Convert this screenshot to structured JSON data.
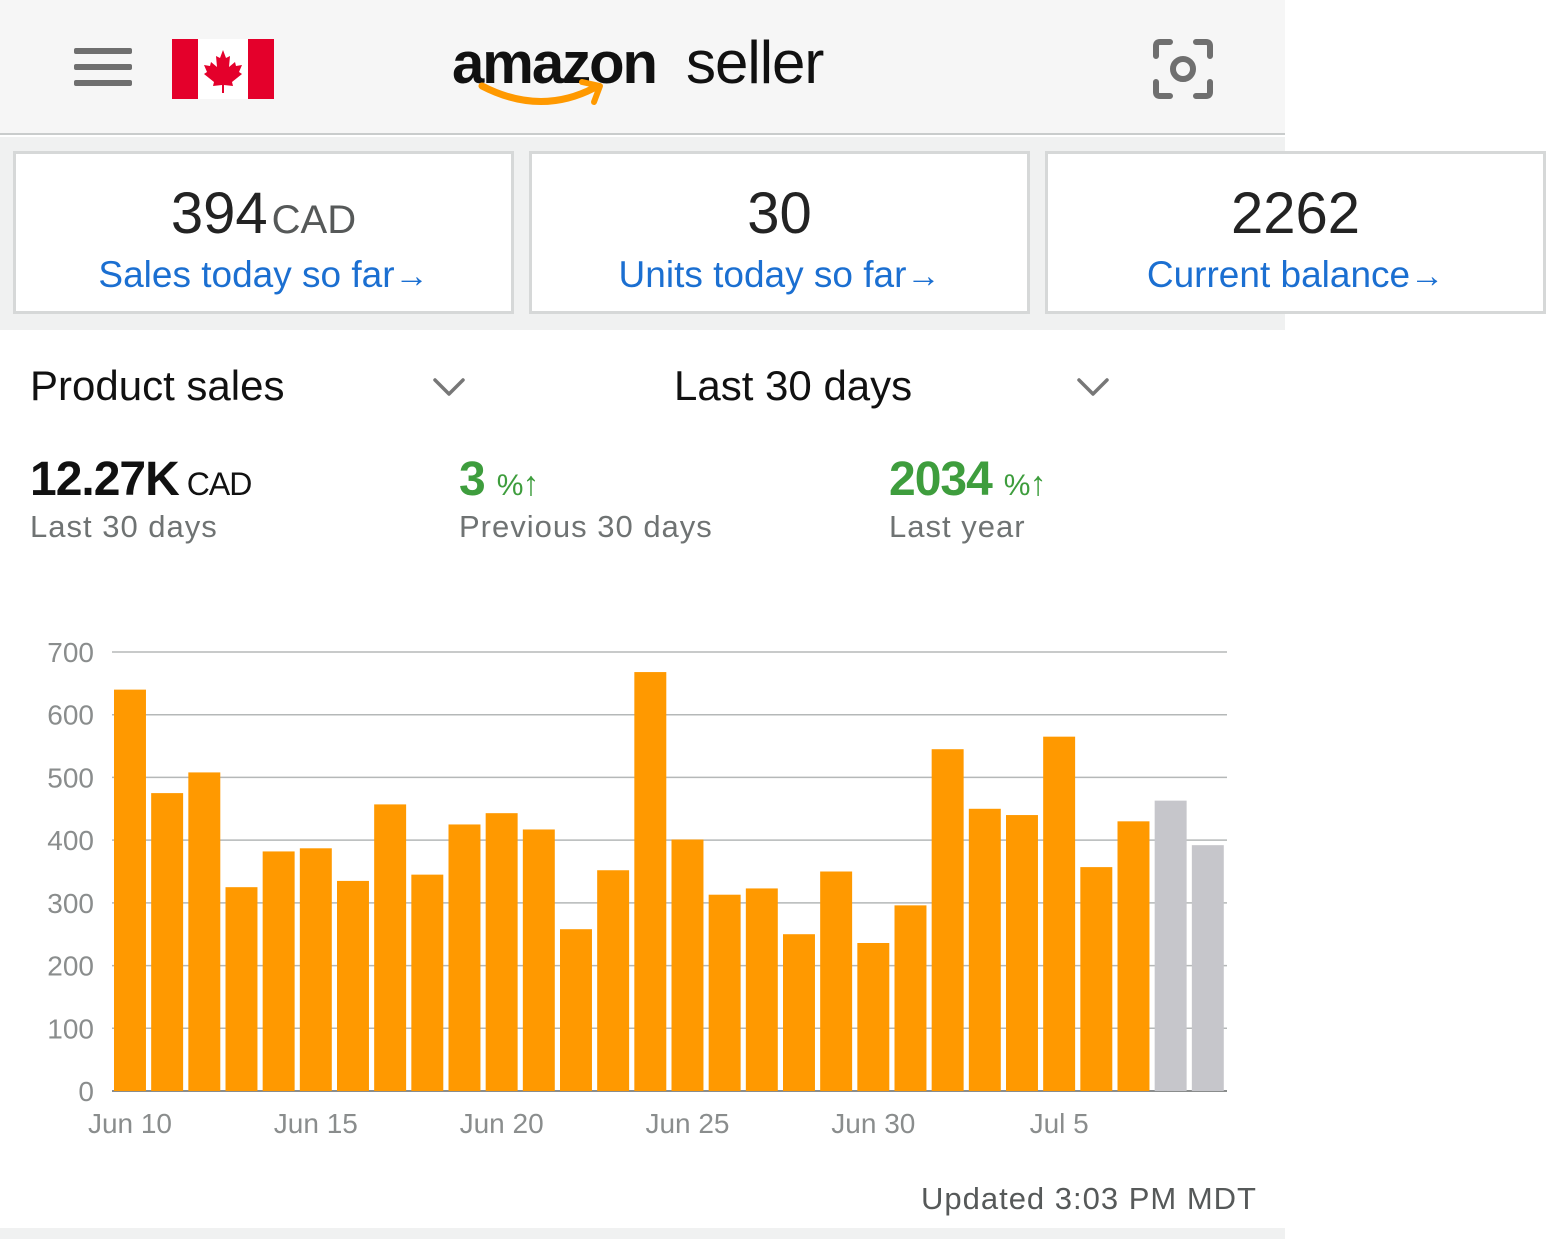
{
  "header": {
    "brand": "amazon",
    "product": "seller",
    "menu_icon": "hamburger-menu-icon",
    "flag_icon": "canada-flag-icon",
    "scan_icon": "camera-scan-icon"
  },
  "cards": [
    {
      "value": "394",
      "unit": "CAD",
      "label": "Sales today so far",
      "arrow": "→"
    },
    {
      "value": "30",
      "unit": "",
      "label": "Units today so far",
      "arrow": "→"
    },
    {
      "value": "2262",
      "unit": "",
      "label": "Current balance",
      "arrow": "→"
    }
  ],
  "selectors": {
    "metric": "Product sales",
    "period": "Last 30 days"
  },
  "metrics": {
    "total": {
      "value": "12.27K",
      "unit": "CAD",
      "label": "Last 30 days"
    },
    "previous": {
      "value": "3",
      "pct": "%",
      "arrow": "↑",
      "label": "Previous 30 days"
    },
    "last_year": {
      "value": "2034",
      "pct": "%",
      "arrow": "↑",
      "label": "Last year"
    }
  },
  "colors": {
    "bar": "#ff9900",
    "bar_projected": "#c6c6cb",
    "link": "#1b6fd1",
    "positive": "#3e9d3d"
  },
  "chart_data": {
    "type": "bar",
    "ylim": [
      0,
      700
    ],
    "yticks": [
      0,
      100,
      200,
      300,
      400,
      500,
      600,
      700
    ],
    "x_tick_labels": [
      "Jun 10",
      "Jun 15",
      "Jun 20",
      "Jun 25",
      "Jun 30",
      "Jul 5"
    ],
    "categories": [
      "Jun 10",
      "Jun 11",
      "Jun 12",
      "Jun 13",
      "Jun 14",
      "Jun 15",
      "Jun 16",
      "Jun 17",
      "Jun 18",
      "Jun 19",
      "Jun 20",
      "Jun 21",
      "Jun 22",
      "Jun 23",
      "Jun 24",
      "Jun 25",
      "Jun 26",
      "Jun 27",
      "Jun 28",
      "Jun 29",
      "Jun 30",
      "Jul 1",
      "Jul 2",
      "Jul 3",
      "Jul 4",
      "Jul 5",
      "Jul 6",
      "Jul 7",
      "Jul 8",
      "Jul 9"
    ],
    "values": [
      640,
      475,
      508,
      325,
      382,
      387,
      335,
      457,
      345,
      425,
      443,
      417,
      258,
      352,
      668,
      401,
      313,
      323,
      250,
      350,
      236,
      296,
      545,
      450,
      440,
      565,
      357,
      430,
      463,
      392
    ],
    "projected": [
      false,
      false,
      false,
      false,
      false,
      false,
      false,
      false,
      false,
      false,
      false,
      false,
      false,
      false,
      false,
      false,
      false,
      false,
      false,
      false,
      false,
      false,
      false,
      false,
      false,
      false,
      false,
      false,
      true,
      true
    ],
    "grid": true
  },
  "footer": {
    "updated": "Updated 3:03 PM MDT"
  }
}
